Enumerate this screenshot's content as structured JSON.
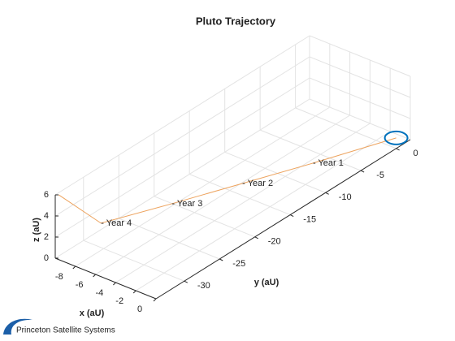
{
  "chart_data": {
    "type": "line3d",
    "title": "Pluto Trajectory",
    "xlabel": "x (aU)",
    "ylabel": "y (aU)",
    "zlabel": "z (aU)",
    "x": [
      0,
      -2.6,
      -4.9,
      -7.2,
      -9.6,
      -9.8
    ],
    "y": [
      0,
      -8.1,
      -14.8,
      -21.5,
      -28.1,
      -33.8
    ],
    "z": [
      1,
      1,
      1,
      1,
      1,
      6
    ],
    "point_labels": [
      null,
      "- Year 1",
      "- Year 2",
      "- Year 3",
      "- Year 4",
      null
    ],
    "color": "#eda35e",
    "start_marker_color": "#0072bd",
    "xlim": [
      -10,
      0
    ],
    "xticks": [
      -8,
      -6,
      -4,
      -2,
      0
    ],
    "ylim": [
      -34,
      2
    ],
    "yticks": [
      -30,
      -25,
      -20,
      -15,
      -10,
      -5,
      0
    ],
    "zlim": [
      0,
      6
    ],
    "zticks": [
      0,
      2,
      4,
      6
    ],
    "grid": true
  },
  "logo_text": "Princeton Satellite Systems"
}
